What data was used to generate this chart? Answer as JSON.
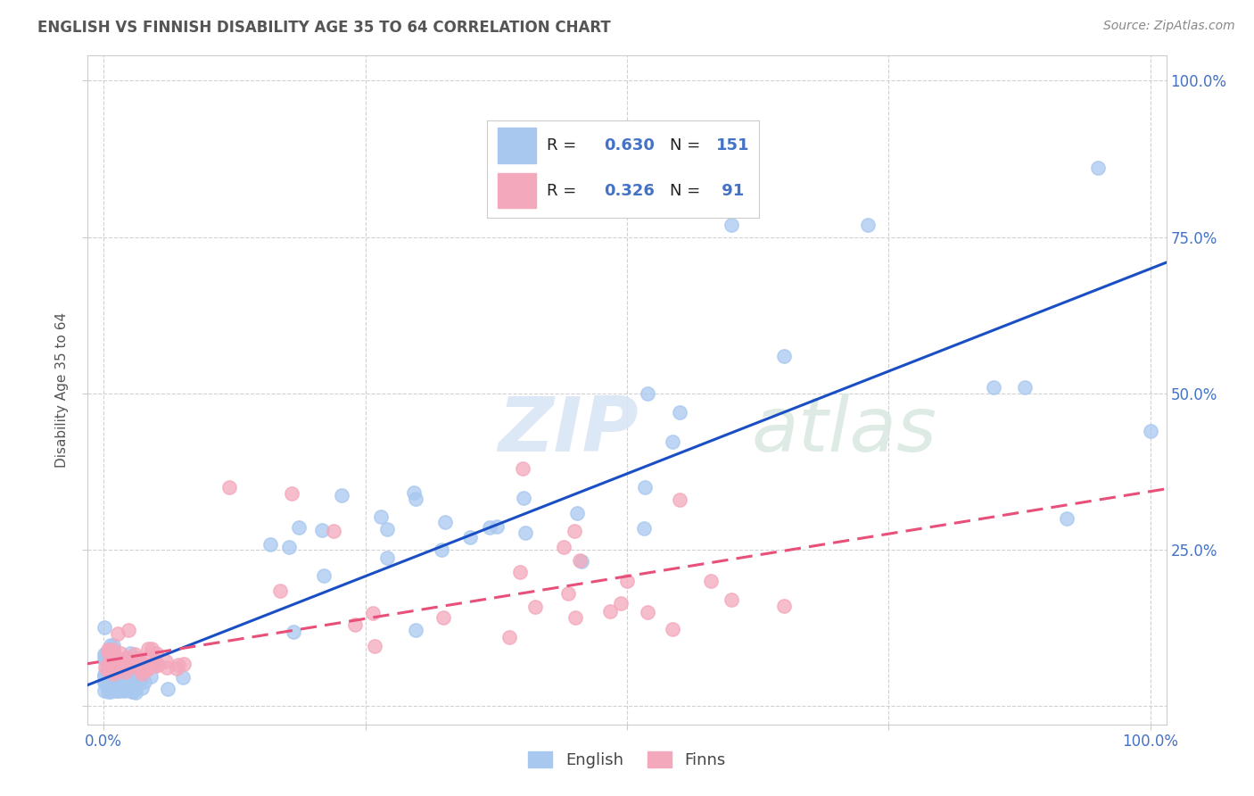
{
  "title": "ENGLISH VS FINNISH DISABILITY AGE 35 TO 64 CORRELATION CHART",
  "source": "Source: ZipAtlas.com",
  "ylabel": "Disability Age 35 to 64",
  "english_color": "#A8C8F0",
  "finns_color": "#F4A8BC",
  "english_line_color": "#1A4FC4",
  "finns_line_color": "#E8507A",
  "R_english": "0.630",
  "N_english": "151",
  "R_finns": "0.326",
  "N_finns": "91",
  "watermark": "ZIPatlas",
  "legend_english": "English",
  "legend_finns": "Finns"
}
